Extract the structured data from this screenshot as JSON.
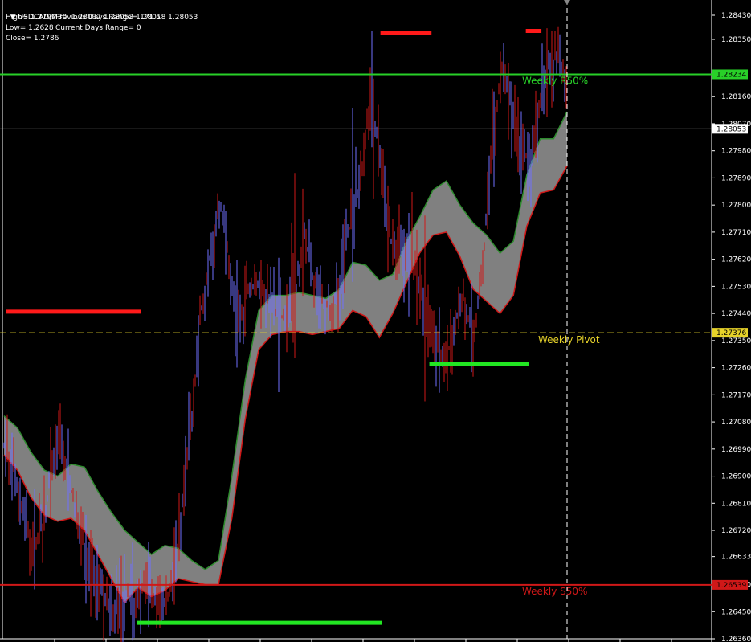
{
  "header": {
    "symbol_line": "USDCAD,M30  1.28032 1.28053 1.28018 1.28053",
    "stats": [
      {
        "left": "High= 1.2799",
        "right": "Previous Days Range= 171.5"
      },
      {
        "left": "Low= 1.2628",
        "right": "Current Days Range= 0"
      },
      {
        "left": "Close= 1.2786",
        "right": ""
      }
    ]
  },
  "colors": {
    "background": "#000000",
    "bull_candle": "#6f6fff",
    "bear_candle": "#d01818",
    "band_fill": "#808080",
    "band_upper_edge": "#2e8b2e",
    "band_lower_edge": "#d01818",
    "r50_line": "#28d028",
    "pivot_line": "#e6d22a",
    "s50_line": "#d01818",
    "current_price_line": "#c0c0c0",
    "target_red": "#ff1a1a",
    "target_green": "#22e622"
  },
  "chart_data": {
    "type": "candlestick",
    "symbol": "USDCAD",
    "timeframe": "M30",
    "ylim": [
      1.2636,
      1.2847
    ],
    "price_axis_ticks": [
      "1.28430",
      "1.28350",
      "1.28160",
      "1.28070",
      "1.27980",
      "1.27890",
      "1.27800",
      "1.27710",
      "1.27620",
      "1.27530",
      "1.27440",
      "1.27350",
      "1.27260",
      "1.27170",
      "1.27080",
      "1.26990",
      "1.26900",
      "1.26810",
      "1.26720",
      "1.26633",
      "1.26540",
      "1.26450",
      "1.26360"
    ],
    "current_price": {
      "value": 1.28053,
      "label": "1.28053"
    },
    "levels": [
      {
        "name": "Weekly R50%",
        "value": 1.28234,
        "box_label": "1.28234",
        "color": "#28d028",
        "style": "solid"
      },
      {
        "name": "Weekly Pivot",
        "value": 1.27376,
        "box_label": "1.27376",
        "color": "#e6d22a",
        "style": "dashed"
      },
      {
        "name": "Weekly S50%",
        "value": 1.26539,
        "box_label": "1.26539",
        "color": "#d01818",
        "style": "solid"
      }
    ],
    "price_series": [
      1.27,
      1.2695,
      1.2678,
      1.2668,
      1.2672,
      1.269,
      1.2702,
      1.2688,
      1.2672,
      1.266,
      1.2655,
      1.265,
      1.2645,
      1.2652,
      1.2648,
      1.2656,
      1.265,
      1.2648,
      1.2655,
      1.268,
      1.271,
      1.2745,
      1.2765,
      1.278,
      1.276,
      1.274,
      1.2752,
      1.2755,
      1.275,
      1.2745,
      1.2742,
      1.275,
      1.277,
      1.2755,
      1.2748,
      1.2745,
      1.276,
      1.2775,
      1.279,
      1.2815,
      1.28,
      1.277,
      1.2765,
      1.2762,
      1.2758,
      1.2745,
      1.2735,
      1.2728,
      1.274,
      1.275,
      1.2735,
      1.276,
      1.28,
      1.2825,
      1.2815,
      1.28,
      1.2795,
      1.281,
      1.2825,
      1.283,
      1.2815
    ],
    "band_upper": [
      1.271,
      1.2706,
      1.2698,
      1.2692,
      1.269,
      1.2694,
      1.2693,
      1.2685,
      1.2678,
      1.2672,
      1.2668,
      1.2664,
      1.2667,
      1.2666,
      1.2662,
      1.2659,
      1.2662,
      1.269,
      1.2722,
      1.2745,
      1.275,
      1.275,
      1.2751,
      1.275,
      1.2749,
      1.2752,
      1.2761,
      1.276,
      1.2755,
      1.2757,
      1.2768,
      1.2776,
      1.2785,
      1.2788,
      1.278,
      1.2774,
      1.277,
      1.2764,
      1.2768,
      1.279,
      1.2802,
      1.2802,
      1.2811
    ],
    "band_lower": [
      1.2697,
      1.2692,
      1.2683,
      1.2677,
      1.2675,
      1.2676,
      1.2672,
      1.2664,
      1.2656,
      1.2648,
      1.2653,
      1.265,
      1.2652,
      1.2656,
      1.2655,
      1.2654,
      1.2654,
      1.2676,
      1.2709,
      1.2732,
      1.2737,
      1.2738,
      1.2738,
      1.2737,
      1.2738,
      1.2739,
      1.2745,
      1.2743,
      1.2736,
      1.2744,
      1.2754,
      1.2764,
      1.277,
      1.2771,
      1.2763,
      1.2752,
      1.2748,
      1.2744,
      1.275,
      1.2773,
      1.2784,
      1.2785,
      1.2793
    ],
    "target_segments": [
      {
        "color": "red",
        "x_from": 0.005,
        "x_to": 0.195,
        "value": 1.27446
      },
      {
        "color": "red",
        "x_from": 0.533,
        "x_to": 0.605,
        "value": 1.28372
      },
      {
        "color": "red",
        "x_from": 0.738,
        "x_to": 0.76,
        "value": 1.28378
      },
      {
        "color": "green",
        "x_from": 0.602,
        "x_to": 0.742,
        "value": 1.27271
      },
      {
        "color": "green",
        "x_from": 0.19,
        "x_to": 0.535,
        "value": 1.26413
      }
    ]
  }
}
